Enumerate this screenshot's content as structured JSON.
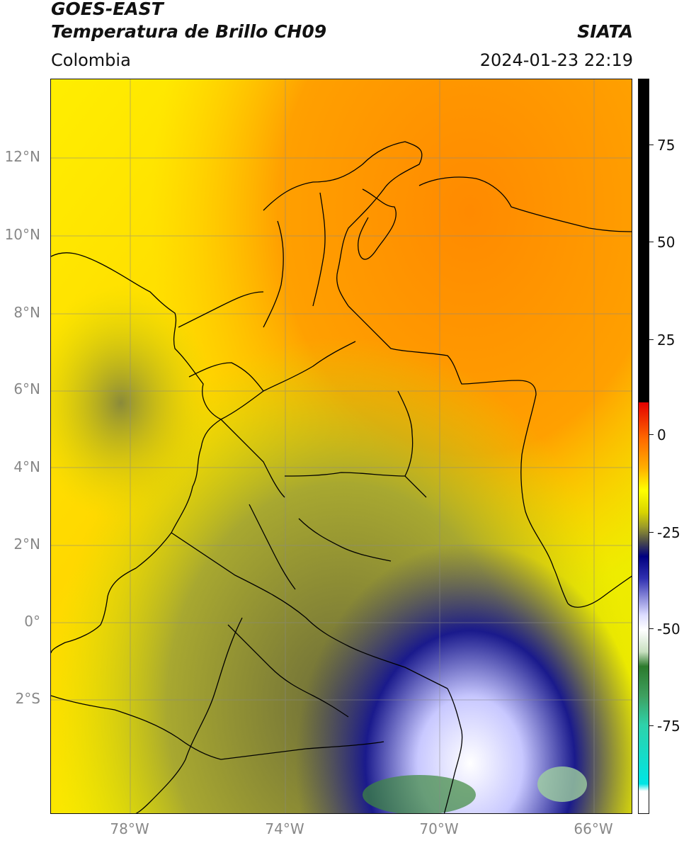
{
  "header": {
    "title_line1": "GOES-EAST",
    "title_line2": "Temperatura de Brillo CH09",
    "brand": "SIATA",
    "region": "Colombia",
    "timestamp": "2024-01-23 22:19"
  },
  "map": {
    "lat_labels": [
      "12°N",
      "10°N",
      "8°N",
      "6°N",
      "4°N",
      "2°N",
      "0°",
      "2°S"
    ],
    "lon_labels": [
      "78°W",
      "74°W",
      "70°W",
      "66°W"
    ],
    "extent": {
      "lon": [
        -80,
        -65
      ],
      "lat": [
        -5.2,
        14
      ]
    }
  },
  "colorbar": {
    "ticks": [
      "75",
      "50",
      "25",
      "0",
      "-25",
      "-50",
      "-75"
    ],
    "colors": {
      "hot": "#000000",
      "red": "#e30000",
      "orange": "#ff8c00",
      "yellow": "#ffff00",
      "olive": "#9a9a2a",
      "navy": "#000080",
      "white": "#ffffff",
      "green": "#2c7a2c",
      "cyan": "#00e5e5"
    }
  }
}
